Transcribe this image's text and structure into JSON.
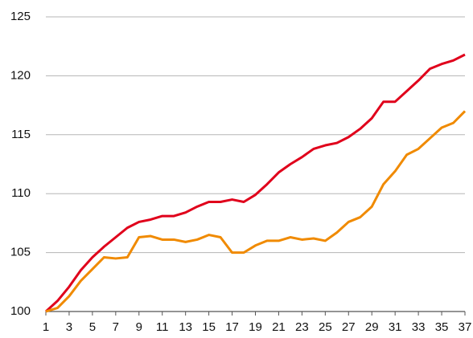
{
  "chart_data": {
    "type": "line",
    "x": [
      1,
      2,
      3,
      4,
      5,
      6,
      7,
      8,
      9,
      10,
      11,
      12,
      13,
      14,
      15,
      16,
      17,
      18,
      19,
      20,
      21,
      22,
      23,
      24,
      25,
      26,
      27,
      28,
      29,
      30,
      31,
      32,
      33,
      34,
      35,
      36,
      37
    ],
    "series": [
      {
        "color": "#e0001b",
        "values": [
          100,
          100.9,
          102.1,
          103.5,
          104.6,
          105.5,
          106.3,
          107.1,
          107.6,
          107.8,
          108.1,
          108.1,
          108.4,
          108.9,
          109.3,
          109.3,
          109.5,
          109.3,
          109.9,
          110.8,
          111.8,
          112.5,
          113.1,
          113.8,
          114.1,
          114.3,
          114.8,
          115.5,
          116.4,
          117.8,
          117.8,
          118.7,
          119.6,
          120.6,
          121.0,
          121.3,
          121.8
        ]
      },
      {
        "color": "#f08a00",
        "values": [
          100,
          100.3,
          101.3,
          102.6,
          103.6,
          104.6,
          104.5,
          104.6,
          106.3,
          106.4,
          106.1,
          106.1,
          105.9,
          106.1,
          106.5,
          106.3,
          105.0,
          105.0,
          105.6,
          106.0,
          106.0,
          106.3,
          106.1,
          106.2,
          106.0,
          106.7,
          107.6,
          108.0,
          108.9,
          110.8,
          111.9,
          113.3,
          113.8,
          114.7,
          115.6,
          116.0,
          117.0
        ]
      }
    ],
    "xlim": [
      1,
      37
    ],
    "xticks": [
      1,
      3,
      5,
      7,
      9,
      11,
      13,
      15,
      17,
      19,
      21,
      23,
      25,
      27,
      29,
      31,
      33,
      35,
      37
    ],
    "ylim": [
      100,
      125
    ],
    "yticks": [
      100,
      105,
      110,
      115,
      120,
      125
    ],
    "grid": true
  }
}
